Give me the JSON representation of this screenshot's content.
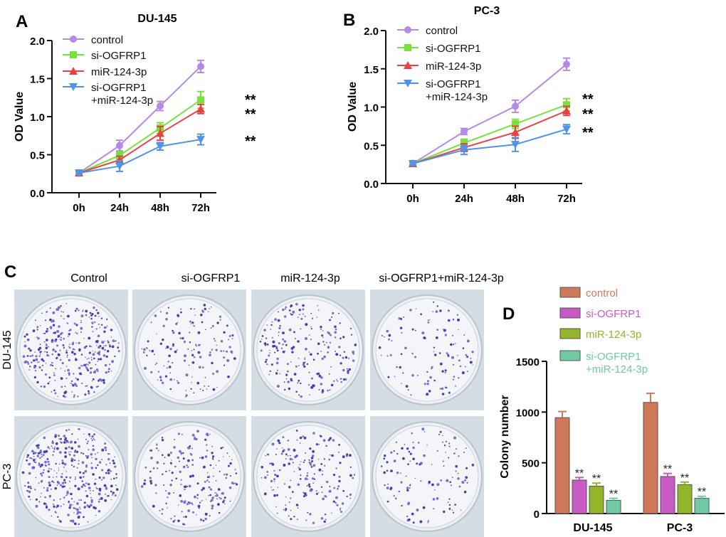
{
  "panels": {
    "a": "A",
    "b": "B",
    "c": "C",
    "d": "D"
  },
  "colors": {
    "control": "#b589e6",
    "si": "#77e23b",
    "mir": "#ea4040",
    "combo": "#4f94e8",
    "bar_control": "#d0785a",
    "bar_si": "#c85ac4",
    "bar_mir": "#93b52a",
    "bar_combo": "#70c9a3"
  },
  "colony_grid": {
    "columns": [
      "Control",
      "si-OGFRP1",
      "miR-124-3p",
      "si-OGFRP1+miR-124-3p"
    ],
    "rows": [
      "DU-145",
      "PC-3"
    ]
  },
  "chart_data": [
    {
      "id": "A",
      "type": "line",
      "title": "DU-145",
      "xlabel": "",
      "ylabel": "OD Value",
      "ylim": [
        0,
        2.0
      ],
      "yticks": [
        "0.0",
        "0.5",
        "1.0",
        "1.5",
        "2.0"
      ],
      "categories": [
        "0h",
        "24h",
        "48h",
        "72h"
      ],
      "series": [
        {
          "name": "control",
          "values": [
            0.26,
            0.62,
            1.14,
            1.66
          ],
          "err": [
            0.02,
            0.07,
            0.06,
            0.08
          ]
        },
        {
          "name": "si-OGFRP1",
          "values": [
            0.26,
            0.49,
            0.85,
            1.22
          ],
          "err": [
            0.02,
            0.05,
            0.07,
            0.11
          ]
        },
        {
          "name": "miR-124-3p",
          "values": [
            0.26,
            0.43,
            0.78,
            1.1
          ],
          "err": [
            0.02,
            0.05,
            0.09,
            0.06
          ]
        },
        {
          "name": "si-OGFRP1\n+miR-124-3p",
          "values": [
            0.26,
            0.35,
            0.61,
            0.7
          ],
          "err": [
            0.02,
            0.07,
            0.05,
            0.07
          ]
        }
      ],
      "annotations": [
        "**",
        "**",
        "**"
      ]
    },
    {
      "id": "B",
      "type": "line",
      "title": "PC-3",
      "xlabel": "",
      "ylabel": "OD Value",
      "ylim": [
        0,
        2.0
      ],
      "yticks": [
        "0.0",
        "0.5",
        "1.0",
        "1.5",
        "2.0"
      ],
      "categories": [
        "0h",
        "24h",
        "48h",
        "72h"
      ],
      "series": [
        {
          "name": "control",
          "values": [
            0.26,
            0.68,
            1.01,
            1.56
          ],
          "err": [
            0.02,
            0.04,
            0.08,
            0.08
          ]
        },
        {
          "name": "si-OGFRP1",
          "values": [
            0.26,
            0.53,
            0.78,
            1.03
          ],
          "err": [
            0.02,
            0.05,
            0.06,
            0.08
          ]
        },
        {
          "name": "miR-124-3p",
          "values": [
            0.26,
            0.47,
            0.67,
            0.95
          ],
          "err": [
            0.02,
            0.05,
            0.08,
            0.06
          ]
        },
        {
          "name": "si-OGFRP1\n+miR-124-3p",
          "values": [
            0.26,
            0.44,
            0.51,
            0.71
          ],
          "err": [
            0.02,
            0.06,
            0.09,
            0.06
          ]
        }
      ],
      "annotations": [
        "**",
        "**",
        "**"
      ]
    },
    {
      "id": "D",
      "type": "bar",
      "title": "",
      "xlabel": "",
      "ylabel": "Colony number",
      "ylim": [
        0,
        1500
      ],
      "yticks": [
        "0",
        "500",
        "1000",
        "1500"
      ],
      "categories": [
        "DU-145",
        "PC-3"
      ],
      "series": [
        {
          "name": "control",
          "values": [
            945,
            1095
          ],
          "err": [
            60,
            90
          ]
        },
        {
          "name": "si-OGFRP1",
          "values": [
            330,
            365
          ],
          "err": [
            25,
            30
          ]
        },
        {
          "name": "miR-124-3p",
          "values": [
            270,
            285
          ],
          "err": [
            30,
            25
          ]
        },
        {
          "name": "si-OGFRP1\n+miR-124-3p",
          "values": [
            130,
            150
          ],
          "err": [
            20,
            20
          ]
        }
      ],
      "annotation": "**"
    }
  ]
}
